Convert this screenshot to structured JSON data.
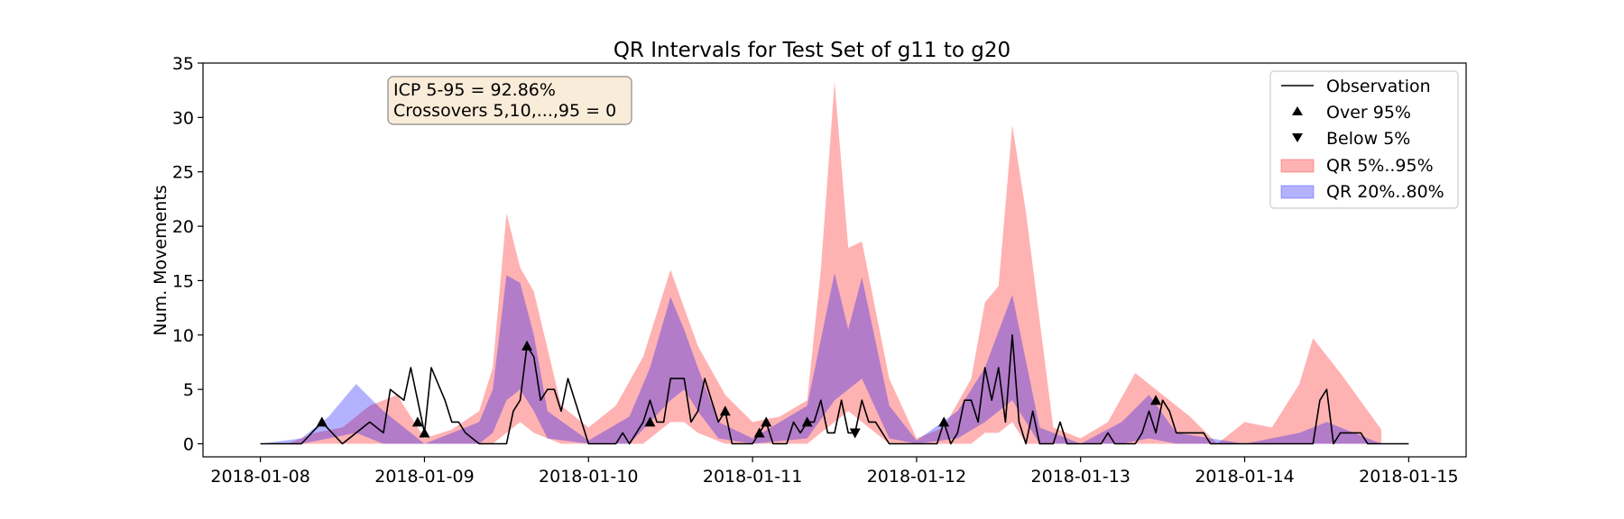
{
  "chart_data": {
    "type": "area",
    "title": "QR Intervals for Test Set of g11 to g20",
    "xlabel": "",
    "ylabel": "Num. Movements",
    "ylim": [
      -1.2,
      35
    ],
    "xlim": [
      "2018-01-07 15:36",
      "2018-01-15 08:24"
    ],
    "yticks": [
      0,
      5,
      10,
      15,
      20,
      25,
      30,
      35
    ],
    "xticks": [
      "2018-01-08",
      "2018-01-09",
      "2018-01-10",
      "2018-01-11",
      "2018-01-12",
      "2018-01-13",
      "2018-01-14",
      "2018-01-15"
    ],
    "grid": false,
    "legend_position": "top-right",
    "colors": {
      "qr90": "#ff9999",
      "qr60": "#8f7fd8",
      "observation": "#000000",
      "annot_bg": "#f9ecd8",
      "annot_border": "#8a8a8a"
    },
    "annotation": [
      "ICP 5-95 = 92.86%",
      "Crossovers 5,10,...,95 = 0"
    ],
    "legend": [
      {
        "label": "Observation",
        "kind": "line"
      },
      {
        "label": "Over 95%",
        "kind": "marker-up"
      },
      {
        "label": "Below 5%",
        "kind": "marker-down"
      },
      {
        "label": "QR 5%..95%",
        "kind": "patch-red"
      },
      {
        "label": "QR 20%..80%",
        "kind": "patch-blue"
      }
    ],
    "series": [
      {
        "name": "QR 5%..95%",
        "points": [
          [
            "2018-01-08 00:00",
            0,
            0
          ],
          [
            "2018-01-08 04:00",
            0,
            0
          ],
          [
            "2018-01-08 08:00",
            0,
            1
          ],
          [
            "2018-01-08 12:00",
            0,
            1.5
          ],
          [
            "2018-01-08 16:00",
            0,
            3.5
          ],
          [
            "2018-01-08 20:00",
            0,
            4.5
          ],
          [
            "2018-01-09 00:00",
            0,
            0.5
          ],
          [
            "2018-01-09 04:00",
            0,
            1.3
          ],
          [
            "2018-01-09 08:00",
            0,
            3
          ],
          [
            "2018-01-09 10:00",
            0,
            7
          ],
          [
            "2018-01-09 12:00",
            1,
            21.2
          ],
          [
            "2018-01-09 14:00",
            2,
            16.2
          ],
          [
            "2018-01-09 16:00",
            1,
            14
          ],
          [
            "2018-01-09 20:00",
            0,
            3.5
          ],
          [
            "2018-01-10 00:00",
            0,
            1.5
          ],
          [
            "2018-01-10 04:00",
            0,
            3.5
          ],
          [
            "2018-01-10 08:00",
            0,
            8
          ],
          [
            "2018-01-10 10:00",
            1,
            12
          ],
          [
            "2018-01-10 12:00",
            2,
            16
          ],
          [
            "2018-01-10 14:00",
            2,
            12.5
          ],
          [
            "2018-01-10 16:00",
            1,
            9
          ],
          [
            "2018-01-10 20:00",
            0,
            4.5
          ],
          [
            "2018-01-11 00:00",
            0,
            2
          ],
          [
            "2018-01-11 04:00",
            0,
            2.5
          ],
          [
            "2018-01-11 08:00",
            0,
            4
          ],
          [
            "2018-01-11 10:00",
            1,
            16
          ],
          [
            "2018-01-11 12:00",
            2,
            33.3
          ],
          [
            "2018-01-11 14:00",
            3,
            18
          ],
          [
            "2018-01-11 16:00",
            2,
            18.6
          ],
          [
            "2018-01-11 20:00",
            0,
            6
          ],
          [
            "2018-01-12 00:00",
            0,
            0.5
          ],
          [
            "2018-01-12 04:00",
            0,
            1.5
          ],
          [
            "2018-01-12 08:00",
            0,
            6
          ],
          [
            "2018-01-12 10:00",
            1,
            13
          ],
          [
            "2018-01-12 12:00",
            1,
            14.5
          ],
          [
            "2018-01-12 14:00",
            2,
            29.3
          ],
          [
            "2018-01-12 16:00",
            0,
            21.3
          ],
          [
            "2018-01-12 20:00",
            0,
            1.5
          ],
          [
            "2018-01-13 00:00",
            0,
            0.5
          ],
          [
            "2018-01-13 04:00",
            0,
            2
          ],
          [
            "2018-01-13 08:00",
            0,
            6.5
          ],
          [
            "2018-01-13 12:00",
            0,
            4.5
          ],
          [
            "2018-01-13 16:00",
            0,
            2.5
          ],
          [
            "2018-01-13 20:00",
            0,
            0
          ],
          [
            "2018-01-14 00:00",
            0,
            2
          ],
          [
            "2018-01-14 04:00",
            0,
            1.5
          ],
          [
            "2018-01-14 08:00",
            0,
            5.5
          ],
          [
            "2018-01-14 10:00",
            0,
            9.7
          ],
          [
            "2018-01-14 14:00",
            0,
            6.5
          ],
          [
            "2018-01-14 20:00",
            0,
            1.3
          ]
        ]
      },
      {
        "name": "QR 20%..80%",
        "points": [
          [
            "2018-01-08 00:00",
            0,
            0
          ],
          [
            "2018-01-08 06:00",
            0,
            0.5
          ],
          [
            "2018-01-08 10:00",
            0.5,
            2.5
          ],
          [
            "2018-01-08 14:00",
            1,
            5.5
          ],
          [
            "2018-01-08 18:00",
            0,
            3
          ],
          [
            "2018-01-09 00:00",
            0,
            0
          ],
          [
            "2018-01-09 08:00",
            0,
            2
          ],
          [
            "2018-01-09 10:00",
            1,
            5
          ],
          [
            "2018-01-09 12:00",
            4,
            15.5
          ],
          [
            "2018-01-09 14:00",
            5,
            14.8
          ],
          [
            "2018-01-09 16:00",
            3,
            10
          ],
          [
            "2018-01-09 18:00",
            0.5,
            3
          ],
          [
            "2018-01-10 00:00",
            0,
            0.3
          ],
          [
            "2018-01-10 06:00",
            0,
            2.5
          ],
          [
            "2018-01-10 09:00",
            2,
            7
          ],
          [
            "2018-01-10 12:00",
            4,
            13.5
          ],
          [
            "2018-01-10 14:00",
            5,
            10.5
          ],
          [
            "2018-01-10 16:00",
            3,
            7
          ],
          [
            "2018-01-10 19:00",
            0.5,
            2
          ],
          [
            "2018-01-11 00:00",
            0,
            0.5
          ],
          [
            "2018-01-11 08:00",
            0.5,
            3.5
          ],
          [
            "2018-01-11 12:00",
            4,
            15.7
          ],
          [
            "2018-01-11 14:00",
            5,
            10.5
          ],
          [
            "2018-01-11 16:00",
            6,
            15.3
          ],
          [
            "2018-01-11 20:00",
            0.5,
            3.5
          ],
          [
            "2018-01-12 00:00",
            0,
            0.3
          ],
          [
            "2018-01-12 06:00",
            0.5,
            3
          ],
          [
            "2018-01-12 10:00",
            2,
            7
          ],
          [
            "2018-01-12 14:00",
            4,
            13.7
          ],
          [
            "2018-01-12 18:00",
            0,
            1.5
          ],
          [
            "2018-01-13 00:00",
            0,
            0
          ],
          [
            "2018-01-13 06:00",
            0,
            2
          ],
          [
            "2018-01-13 10:00",
            0.5,
            4.5
          ],
          [
            "2018-01-13 14:00",
            0,
            1
          ],
          [
            "2018-01-14 00:00",
            0,
            0
          ],
          [
            "2018-01-14 08:00",
            0,
            1
          ],
          [
            "2018-01-14 12:00",
            0,
            2
          ],
          [
            "2018-01-14 16:00",
            0,
            1
          ],
          [
            "2018-01-14 20:00",
            0,
            0
          ]
        ]
      },
      {
        "name": "Observation",
        "points": [
          [
            "2018-01-08 00:00",
            0
          ],
          [
            "2018-01-08 06:00",
            0
          ],
          [
            "2018-01-08 09:00",
            2
          ],
          [
            "2018-01-08 12:00",
            0
          ],
          [
            "2018-01-08 16:00",
            2
          ],
          [
            "2018-01-08 18:00",
            1
          ],
          [
            "2018-01-08 19:00",
            5
          ],
          [
            "2018-01-08 21:00",
            4
          ],
          [
            "2018-01-08 22:00",
            7
          ],
          [
            "2018-01-09 00:00",
            1
          ],
          [
            "2018-01-09 01:00",
            7
          ],
          [
            "2018-01-09 03:00",
            4
          ],
          [
            "2018-01-09 04:00",
            2
          ],
          [
            "2018-01-09 05:00",
            2
          ],
          [
            "2018-01-09 06:00",
            1
          ],
          [
            "2018-01-09 08:00",
            0
          ],
          [
            "2018-01-09 12:00",
            0
          ],
          [
            "2018-01-09 13:00",
            3
          ],
          [
            "2018-01-09 14:00",
            4
          ],
          [
            "2018-01-09 15:00",
            9
          ],
          [
            "2018-01-09 16:00",
            8
          ],
          [
            "2018-01-09 17:00",
            4
          ],
          [
            "2018-01-09 18:00",
            5
          ],
          [
            "2018-01-09 19:00",
            5
          ],
          [
            "2018-01-09 20:00",
            3
          ],
          [
            "2018-01-09 21:00",
            6
          ],
          [
            "2018-01-09 22:00",
            4
          ],
          [
            "2018-01-10 00:00",
            0
          ],
          [
            "2018-01-10 04:00",
            0
          ],
          [
            "2018-01-10 05:00",
            1
          ],
          [
            "2018-01-10 06:00",
            0
          ],
          [
            "2018-01-10 08:00",
            2
          ],
          [
            "2018-01-10 09:00",
            4
          ],
          [
            "2018-01-10 10:00",
            2
          ],
          [
            "2018-01-10 11:00",
            2
          ],
          [
            "2018-01-10 12:00",
            6
          ],
          [
            "2018-01-10 14:00",
            6
          ],
          [
            "2018-01-10 15:00",
            2
          ],
          [
            "2018-01-10 16:00",
            3
          ],
          [
            "2018-01-10 17:00",
            6
          ],
          [
            "2018-01-10 18:00",
            4
          ],
          [
            "2018-01-10 19:00",
            2
          ],
          [
            "2018-01-10 20:00",
            3
          ],
          [
            "2018-01-10 21:00",
            0
          ],
          [
            "2018-01-11 00:00",
            0
          ],
          [
            "2018-01-11 01:00",
            1
          ],
          [
            "2018-01-11 02:00",
            2
          ],
          [
            "2018-01-11 03:00",
            0
          ],
          [
            "2018-01-11 05:00",
            0
          ],
          [
            "2018-01-11 06:00",
            2
          ],
          [
            "2018-01-11 07:00",
            1
          ],
          [
            "2018-01-11 08:00",
            2
          ],
          [
            "2018-01-11 09:00",
            2
          ],
          [
            "2018-01-11 10:00",
            4
          ],
          [
            "2018-01-11 11:00",
            1
          ],
          [
            "2018-01-11 12:00",
            1
          ],
          [
            "2018-01-11 13:00",
            4
          ],
          [
            "2018-01-11 14:00",
            1
          ],
          [
            "2018-01-11 15:00",
            1
          ],
          [
            "2018-01-11 16:00",
            4
          ],
          [
            "2018-01-11 17:00",
            2
          ],
          [
            "2018-01-11 18:00",
            2
          ],
          [
            "2018-01-11 19:00",
            1
          ],
          [
            "2018-01-11 20:00",
            0
          ],
          [
            "2018-01-12 00:00",
            0
          ],
          [
            "2018-01-12 03:00",
            0
          ],
          [
            "2018-01-12 04:00",
            2
          ],
          [
            "2018-01-12 05:00",
            0
          ],
          [
            "2018-01-12 06:00",
            1
          ],
          [
            "2018-01-12 07:00",
            4
          ],
          [
            "2018-01-12 08:00",
            4
          ],
          [
            "2018-01-12 09:00",
            2
          ],
          [
            "2018-01-12 10:00",
            7
          ],
          [
            "2018-01-12 11:00",
            4
          ],
          [
            "2018-01-12 12:00",
            7
          ],
          [
            "2018-01-12 13:00",
            2
          ],
          [
            "2018-01-12 14:00",
            10
          ],
          [
            "2018-01-12 15:00",
            2
          ],
          [
            "2018-01-12 16:00",
            0
          ],
          [
            "2018-01-12 17:00",
            3
          ],
          [
            "2018-01-12 18:00",
            0
          ],
          [
            "2018-01-12 20:00",
            0
          ],
          [
            "2018-01-12 21:00",
            2
          ],
          [
            "2018-01-12 22:00",
            0
          ],
          [
            "2018-01-13 00:00",
            0
          ],
          [
            "2018-01-13 03:00",
            0
          ],
          [
            "2018-01-13 04:00",
            1
          ],
          [
            "2018-01-13 05:00",
            0
          ],
          [
            "2018-01-13 08:00",
            0
          ],
          [
            "2018-01-13 09:00",
            1
          ],
          [
            "2018-01-13 10:00",
            3
          ],
          [
            "2018-01-13 11:00",
            1
          ],
          [
            "2018-01-13 12:00",
            4
          ],
          [
            "2018-01-13 13:00",
            3
          ],
          [
            "2018-01-13 14:00",
            1
          ],
          [
            "2018-01-13 18:00",
            1
          ],
          [
            "2018-01-13 19:00",
            0
          ],
          [
            "2018-01-14 10:00",
            0
          ],
          [
            "2018-01-14 11:00",
            4
          ],
          [
            "2018-01-14 12:00",
            5
          ],
          [
            "2018-01-14 13:00",
            0
          ],
          [
            "2018-01-14 14:00",
            1
          ],
          [
            "2018-01-14 17:00",
            1
          ],
          [
            "2018-01-14 18:00",
            0
          ],
          [
            "2018-01-15 00:00",
            0
          ]
        ]
      },
      {
        "name": "Over 95%",
        "marker": "triangle-up",
        "points": [
          [
            "2018-01-08 09:00",
            2
          ],
          [
            "2018-01-09 15:00",
            9
          ],
          [
            "2018-01-08 23:00",
            2
          ],
          [
            "2018-01-09 00:00",
            1
          ],
          [
            "2018-01-10 09:00",
            2
          ],
          [
            "2018-01-10 20:00",
            3
          ],
          [
            "2018-01-11 01:00",
            1
          ],
          [
            "2018-01-11 02:00",
            2
          ],
          [
            "2018-01-11 08:00",
            2
          ],
          [
            "2018-01-12 04:00",
            2
          ],
          [
            "2018-01-13 11:00",
            4
          ]
        ]
      },
      {
        "name": "Below 5%",
        "marker": "triangle-down",
        "points": [
          [
            "2018-01-11 15:00",
            1
          ]
        ]
      }
    ]
  }
}
